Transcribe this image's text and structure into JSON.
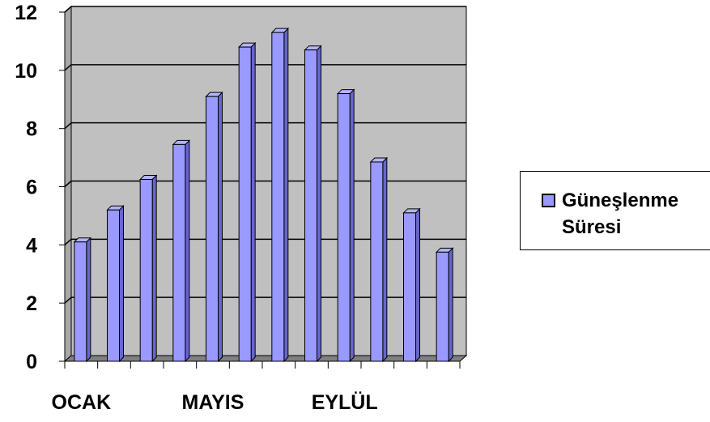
{
  "chart_data": {
    "type": "bar",
    "categories": [
      "OCAK",
      "",
      "",
      "",
      "MAYIS",
      "",
      "",
      "",
      "EYLÜL",
      "",
      "",
      ""
    ],
    "series": [
      {
        "name": "Güneşlenme Süresi",
        "values": [
          4.1,
          5.2,
          6.25,
          7.45,
          9.1,
          10.8,
          11.3,
          10.7,
          9.2,
          6.85,
          5.1,
          3.75
        ],
        "color": "#9999ff"
      }
    ],
    "title": "",
    "xlabel": "",
    "ylabel": "",
    "ylim": [
      0,
      12
    ],
    "yticks": [
      "0",
      "2",
      "4",
      "6",
      "8",
      "10",
      "12"
    ],
    "xtick_labels": [
      "OCAK",
      "MAYIS",
      "EYLÜL"
    ],
    "grid": true,
    "plot_background": "#c0c0c0",
    "legend_position": "right"
  },
  "legend": {
    "label_line1": "Güneşlenme",
    "label_line2": "Süresi"
  }
}
